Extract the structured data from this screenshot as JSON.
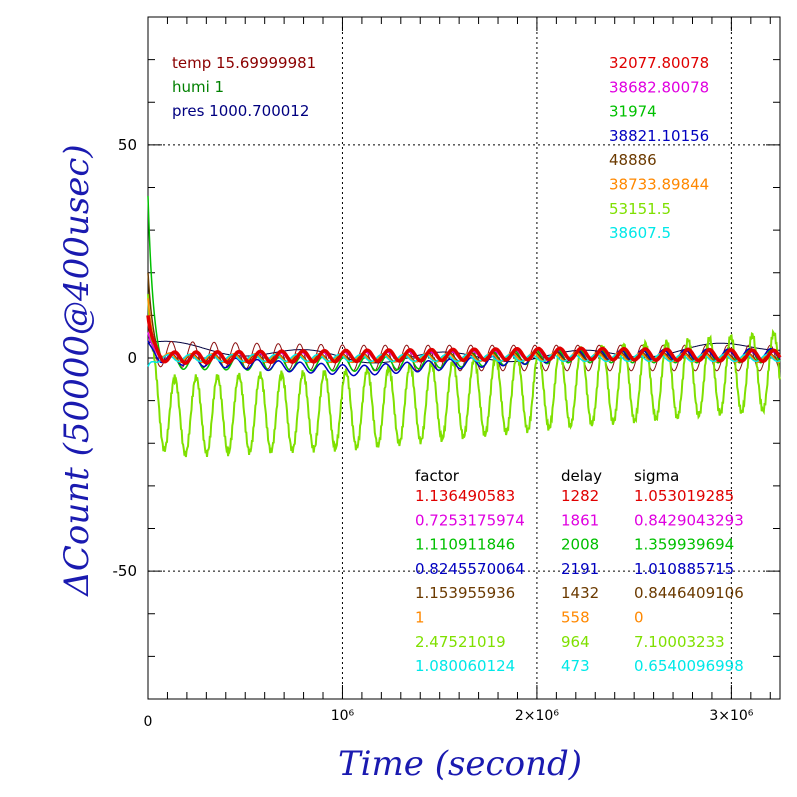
{
  "chart_data": {
    "type": "line",
    "xlabel": "Time (second)",
    "ylabel": "ΔCount (50000@400usec)",
    "xlim": [
      0,
      3250000
    ],
    "ylim": [
      -80,
      80
    ],
    "x_ticks": [
      {
        "value": 0,
        "label": "0"
      },
      {
        "value": 1000000,
        "label": "10⁶"
      },
      {
        "value": 2000000,
        "label": "2×10⁶"
      },
      {
        "value": 3000000,
        "label": "3×10⁶"
      }
    ],
    "y_ticks": [
      {
        "value": 50,
        "label": "50"
      },
      {
        "value": 0,
        "label": "0"
      },
      {
        "value": -50,
        "label": "-50"
      }
    ],
    "grid": true,
    "env": [
      {
        "text": "temp 15.69999981",
        "color": "#8b0000"
      },
      {
        "text": "humi 1",
        "color": "#008000"
      },
      {
        "text": "pres 1000.700012",
        "color": "#000080"
      }
    ],
    "table_headers": {
      "factor": "factor",
      "delay": "delay",
      "sigma": "sigma"
    },
    "series": [
      {
        "color": "#e00000",
        "mean": "32077.80078",
        "factor": "1.136490583",
        "delay": "1282",
        "sigma": "1.053019285",
        "init": 10,
        "amp": 1.3,
        "period": 110000,
        "phase": 0.0,
        "drift": [
          0,
          0.5,
          1.0,
          0.5
        ],
        "width": 3.5
      },
      {
        "color": "#e000e0",
        "mean": "38682.80078",
        "factor": "0.7253175974",
        "delay": "1861",
        "sigma": "0.8429043293",
        "init": 6,
        "amp": 1.0,
        "period": 110000,
        "phase": 0.3,
        "drift": [
          0,
          0.3,
          0.7,
          0.4
        ],
        "width": 1.5
      },
      {
        "color": "#00c000",
        "mean": "31974",
        "factor": "1.110911846",
        "delay": "2008",
        "sigma": "1.359939694",
        "init": 38,
        "amp": 1.6,
        "period": 110000,
        "phase": 0.6,
        "drift": [
          -1,
          -1.5,
          0.5,
          0.5
        ],
        "width": 1.5
      },
      {
        "color": "#0000c0",
        "mean": "38821.10156",
        "factor": "0.8245570064",
        "delay": "2191",
        "sigma": "1.010885715",
        "init": 4,
        "amp": 1.2,
        "period": 110000,
        "phase": 0.9,
        "drift": [
          0,
          -3,
          0.5,
          1
        ],
        "width": 1.5
      },
      {
        "color": "#6b3a00",
        "mean": "48886",
        "factor": "1.153955936",
        "delay": "1432",
        "sigma": "0.8446409106",
        "init": 20,
        "amp": 1.0,
        "period": 110000,
        "phase": 1.2,
        "drift": [
          0,
          0,
          0.5,
          0
        ],
        "width": 1.5
      },
      {
        "color": "#ff8800",
        "mean": "38733.89844",
        "factor": "1",
        "delay": "558",
        "sigma": "0",
        "init": 14,
        "amp": 1.0,
        "period": 110000,
        "phase": 1.5,
        "drift": [
          0,
          0,
          0.3,
          0
        ],
        "width": 1.5
      },
      {
        "color": "#7fe000",
        "mean": "53151.5",
        "factor": "2.47521019",
        "delay": "964",
        "sigma": "7.10003233",
        "init": 15,
        "amp": 9.0,
        "period": 110000,
        "phase": 0.0,
        "drift": [
          -14,
          -12,
          -7,
          -3
        ],
        "width": 2
      },
      {
        "color": "#00e8e8",
        "mean": "38607.5",
        "factor": "1.080060124",
        "delay": "473",
        "sigma": "0.6540096998",
        "init": -2,
        "amp": 0.8,
        "period": 110000,
        "phase": 2.0,
        "drift": [
          0,
          0,
          0,
          0
        ],
        "width": 1.5
      }
    ],
    "extra_lines": [
      {
        "color": "#000040",
        "amp": 1.2,
        "period": 700000,
        "phase": 0.5,
        "drift": [
          3,
          0,
          0.5,
          3
        ],
        "width": 1
      },
      {
        "color": "#8b1010",
        "amp": 3.0,
        "period": 110000,
        "phase": 1.0,
        "drift": [
          1,
          0,
          0,
          0
        ],
        "width": 1
      }
    ]
  }
}
